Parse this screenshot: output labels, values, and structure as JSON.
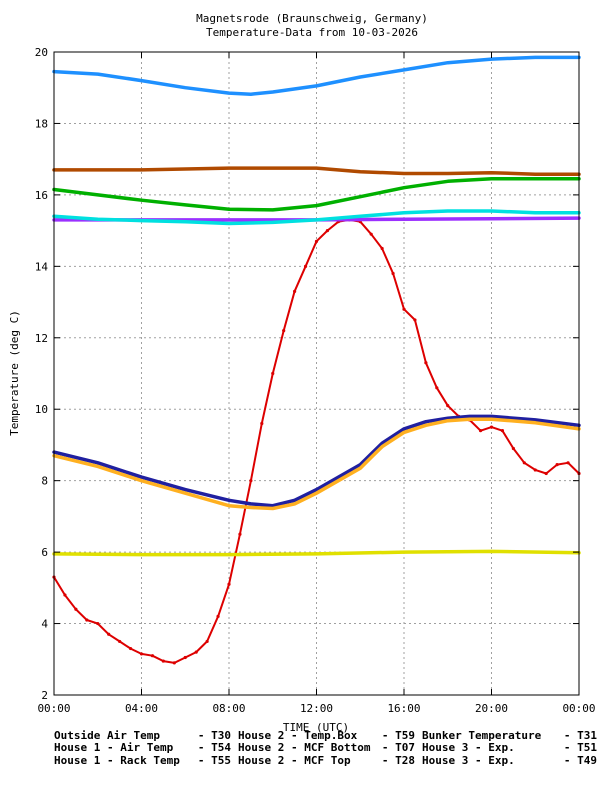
{
  "chart_data": {
    "type": "line",
    "title": "Magnetsrode (Braunschweig, Germany)",
    "subtitle": "Temperature-Data from 10-03-2026",
    "xlabel": "TIME (UTC)",
    "ylabel": "Temperature (deg C)",
    "xlim": [
      0,
      24
    ],
    "ylim": [
      2,
      20
    ],
    "x_ticks": [
      {
        "v": 0,
        "label": "00:00"
      },
      {
        "v": 4,
        "label": "04:00"
      },
      {
        "v": 8,
        "label": "08:00"
      },
      {
        "v": 12,
        "label": "12:00"
      },
      {
        "v": 16,
        "label": "16:00"
      },
      {
        "v": 20,
        "label": "20:00"
      },
      {
        "v": 24,
        "label": "00:00"
      }
    ],
    "y_ticks": [
      {
        "v": 2,
        "label": "2"
      },
      {
        "v": 4,
        "label": "4"
      },
      {
        "v": 6,
        "label": "6"
      },
      {
        "v": 8,
        "label": "8"
      },
      {
        "v": 10,
        "label": "10"
      },
      {
        "v": 12,
        "label": "12"
      },
      {
        "v": 14,
        "label": "14"
      },
      {
        "v": 16,
        "label": "16"
      },
      {
        "v": 18,
        "label": "18"
      },
      {
        "v": 20,
        "label": "20"
      }
    ],
    "grid": true,
    "legend_position": "bottom",
    "series": [
      {
        "name": "Outside Air Temp",
        "code": "T30",
        "color": "#dd0000",
        "marker": true,
        "points": [
          [
            0,
            5.3
          ],
          [
            0.5,
            4.8
          ],
          [
            1,
            4.4
          ],
          [
            1.5,
            4.1
          ],
          [
            2,
            4.0
          ],
          [
            2.5,
            3.7
          ],
          [
            3,
            3.5
          ],
          [
            3.5,
            3.3
          ],
          [
            4,
            3.15
          ],
          [
            4.5,
            3.1
          ],
          [
            5,
            2.95
          ],
          [
            5.5,
            2.9
          ],
          [
            6,
            3.05
          ],
          [
            6.5,
            3.2
          ],
          [
            7,
            3.5
          ],
          [
            7.5,
            4.2
          ],
          [
            8,
            5.1
          ],
          [
            8.5,
            6.5
          ],
          [
            9,
            8.0
          ],
          [
            9.5,
            9.6
          ],
          [
            10,
            11.0
          ],
          [
            10.5,
            12.2
          ],
          [
            11,
            13.3
          ],
          [
            11.5,
            14.0
          ],
          [
            12,
            14.7
          ],
          [
            12.5,
            15.0
          ],
          [
            13,
            15.25
          ],
          [
            13.5,
            15.3
          ],
          [
            14,
            15.25
          ],
          [
            14.5,
            14.9
          ],
          [
            15,
            14.5
          ],
          [
            15.5,
            13.8
          ],
          [
            16,
            12.8
          ],
          [
            16.5,
            12.5
          ],
          [
            17,
            11.3
          ],
          [
            17.5,
            10.6
          ],
          [
            18,
            10.1
          ],
          [
            18.5,
            9.8
          ],
          [
            19,
            9.7
          ],
          [
            19.5,
            9.4
          ],
          [
            20,
            9.5
          ],
          [
            20.5,
            9.4
          ],
          [
            21,
            8.9
          ],
          [
            21.5,
            8.5
          ],
          [
            22,
            8.3
          ],
          [
            22.5,
            8.2
          ],
          [
            23,
            8.45
          ],
          [
            23.5,
            8.5
          ],
          [
            24,
            8.2
          ]
        ]
      },
      {
        "name": "House 1 - Air  Temp",
        "code": "T54",
        "color": "#00b000",
        "marker": false,
        "points": [
          [
            0,
            16.15
          ],
          [
            2,
            16.0
          ],
          [
            4,
            15.85
          ],
          [
            6,
            15.72
          ],
          [
            8,
            15.6
          ],
          [
            10,
            15.58
          ],
          [
            12,
            15.7
          ],
          [
            14,
            15.95
          ],
          [
            16,
            16.2
          ],
          [
            18,
            16.38
          ],
          [
            20,
            16.45
          ],
          [
            22,
            16.45
          ],
          [
            24,
            16.45
          ]
        ]
      },
      {
        "name": "House 1 - Rack Temp",
        "code": "T55",
        "color": "#1e90ff",
        "marker": false,
        "points": [
          [
            0,
            19.45
          ],
          [
            2,
            19.38
          ],
          [
            4,
            19.2
          ],
          [
            6,
            19.0
          ],
          [
            8,
            18.85
          ],
          [
            9,
            18.82
          ],
          [
            10,
            18.88
          ],
          [
            12,
            19.05
          ],
          [
            14,
            19.3
          ],
          [
            16,
            19.5
          ],
          [
            18,
            19.7
          ],
          [
            20,
            19.8
          ],
          [
            22,
            19.85
          ],
          [
            24,
            19.85
          ]
        ]
      },
      {
        "name": "House 2 - Temp.Box",
        "code": "T59",
        "color": "#9b30ff",
        "marker": false,
        "points": [
          [
            0,
            15.3
          ],
          [
            4,
            15.3
          ],
          [
            8,
            15.3
          ],
          [
            12,
            15.3
          ],
          [
            16,
            15.32
          ],
          [
            20,
            15.33
          ],
          [
            24,
            15.35
          ]
        ]
      },
      {
        "name": "House 2 - MCF Bottom",
        "code": "T07",
        "color": "#00e0e0",
        "marker": false,
        "points": [
          [
            0,
            15.4
          ],
          [
            2,
            15.32
          ],
          [
            4,
            15.28
          ],
          [
            6,
            15.25
          ],
          [
            8,
            15.2
          ],
          [
            10,
            15.23
          ],
          [
            12,
            15.3
          ],
          [
            14,
            15.4
          ],
          [
            16,
            15.5
          ],
          [
            18,
            15.55
          ],
          [
            20,
            15.55
          ],
          [
            22,
            15.5
          ],
          [
            24,
            15.5
          ]
        ]
      },
      {
        "name": "House 2 - MCF Top",
        "code": "T28",
        "color": "#b04a00",
        "marker": false,
        "points": [
          [
            0,
            16.7
          ],
          [
            4,
            16.7
          ],
          [
            8,
            16.75
          ],
          [
            12,
            16.75
          ],
          [
            14,
            16.65
          ],
          [
            16,
            16.6
          ],
          [
            18,
            16.6
          ],
          [
            20,
            16.62
          ],
          [
            22,
            16.58
          ],
          [
            24,
            16.58
          ]
        ]
      },
      {
        "name": "Bunker Temperature",
        "code": "T31",
        "color": "#e0e000",
        "marker": false,
        "points": [
          [
            0,
            5.95
          ],
          [
            4,
            5.93
          ],
          [
            8,
            5.93
          ],
          [
            12,
            5.95
          ],
          [
            16,
            6.0
          ],
          [
            20,
            6.02
          ],
          [
            24,
            5.98
          ]
        ]
      },
      {
        "name": "House 3 - Exp.",
        "code": "T51",
        "color": "#2020a0",
        "marker": false,
        "points": [
          [
            0,
            8.8
          ],
          [
            2,
            8.5
          ],
          [
            4,
            8.1
          ],
          [
            6,
            7.75
          ],
          [
            8,
            7.45
          ],
          [
            9,
            7.35
          ],
          [
            10,
            7.3
          ],
          [
            11,
            7.45
          ],
          [
            12,
            7.75
          ],
          [
            13,
            8.1
          ],
          [
            14,
            8.45
          ],
          [
            14.5,
            8.75
          ],
          [
            15,
            9.05
          ],
          [
            16,
            9.45
          ],
          [
            17,
            9.65
          ],
          [
            18,
            9.75
          ],
          [
            19,
            9.8
          ],
          [
            20,
            9.8
          ],
          [
            22,
            9.7
          ],
          [
            24,
            9.55
          ]
        ]
      },
      {
        "name": "House 3 - Exp.",
        "code": "T49",
        "color": "#ffb020",
        "marker": false,
        "points": [
          [
            0,
            8.7
          ],
          [
            2,
            8.4
          ],
          [
            4,
            8.0
          ],
          [
            6,
            7.65
          ],
          [
            8,
            7.3
          ],
          [
            9,
            7.25
          ],
          [
            10,
            7.22
          ],
          [
            11,
            7.35
          ],
          [
            12,
            7.65
          ],
          [
            13,
            8.0
          ],
          [
            14,
            8.35
          ],
          [
            14.5,
            8.65
          ],
          [
            15,
            8.95
          ],
          [
            16,
            9.35
          ],
          [
            17,
            9.55
          ],
          [
            18,
            9.68
          ],
          [
            19,
            9.72
          ],
          [
            20,
            9.72
          ],
          [
            22,
            9.62
          ],
          [
            24,
            9.45
          ]
        ]
      }
    ]
  }
}
